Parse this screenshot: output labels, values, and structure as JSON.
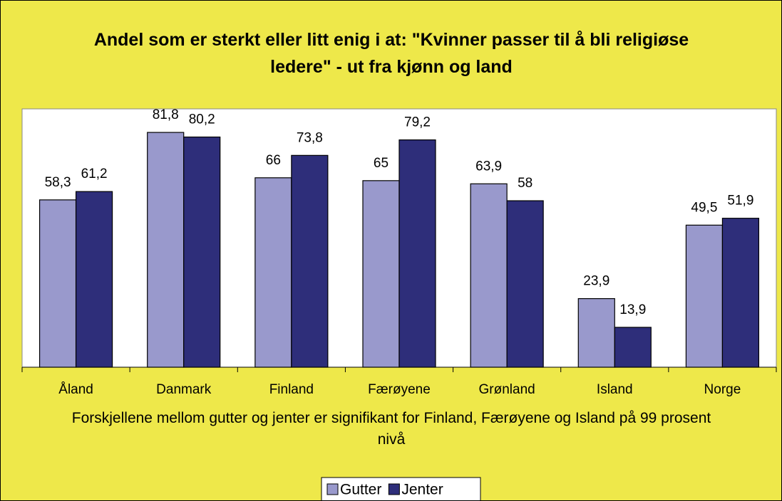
{
  "chart_data": {
    "type": "bar",
    "title": "Andel som er sterkt eller litt enig i at: \"Kvinner passer til å bli religiøse ledere\" - ut fra kjønn og land",
    "note": "Forskjellene mellom gutter og jenter er signifikant for Finland, Færøyene og Island på 99 prosent nivå",
    "categories": [
      "Åland",
      "Danmark",
      "Finland",
      "Færøyene",
      "Grønland",
      "Island",
      "Norge"
    ],
    "series": [
      {
        "name": "Gutter",
        "color": "#9999cc",
        "values": [
          58.3,
          81.8,
          66,
          65,
          63.9,
          23.9,
          49.5
        ],
        "value_labels": [
          "58,3",
          "81,8",
          "66",
          "65",
          "63,9",
          "23,9",
          "49,5"
        ]
      },
      {
        "name": "Jenter",
        "color": "#2e2e7a",
        "values": [
          61.2,
          80.2,
          73.8,
          79.2,
          58,
          13.9,
          51.9
        ],
        "value_labels": [
          "61,2",
          "80,2",
          "73,8",
          "79,2",
          "58",
          "13,9",
          "51,9"
        ]
      }
    ],
    "ylim": [
      0,
      90
    ],
    "legend": "bottom"
  }
}
